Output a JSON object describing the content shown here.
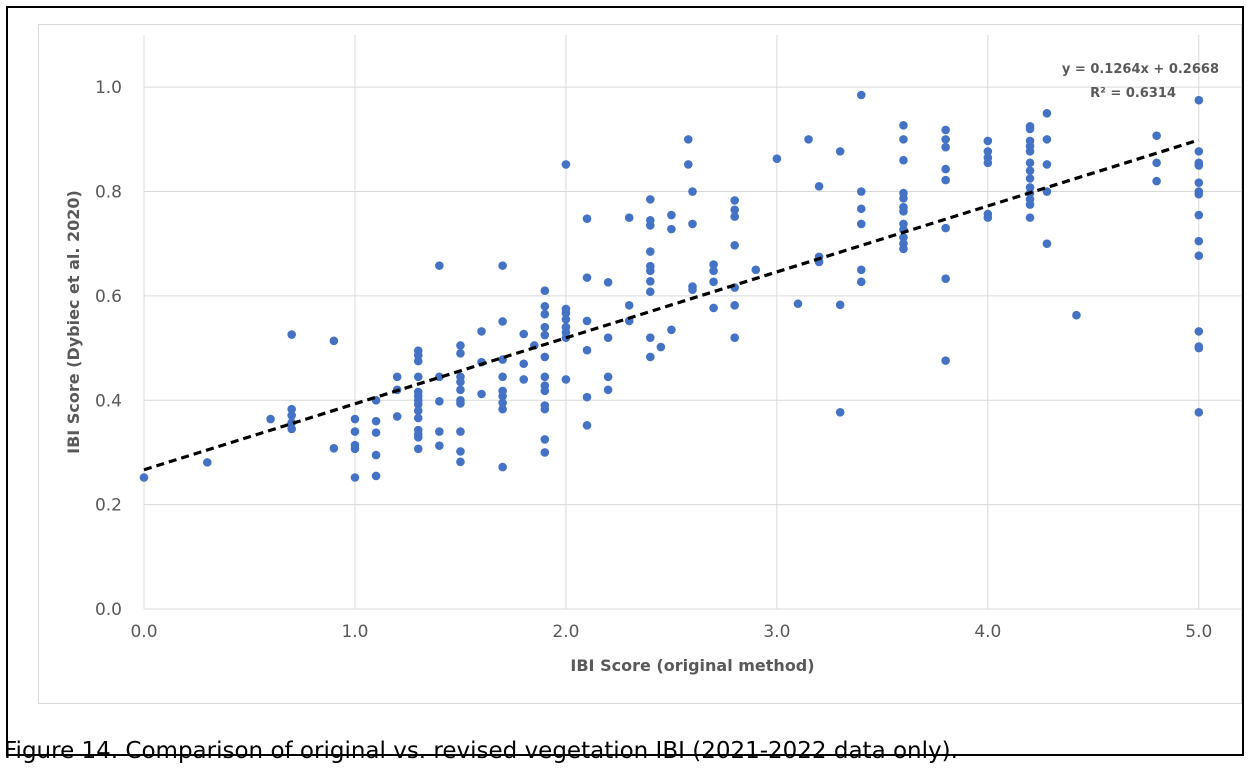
{
  "caption": "Figure 14. Comparison of original vs. revised vegetation IBI (2021-2022 data only).",
  "chart_data": {
    "type": "scatter",
    "xlabel": "IBI Score (original method)",
    "ylabel": "IBI Score (Dybiec et al. 2020)",
    "xlim": [
      0,
      5.2
    ],
    "ylim": [
      0,
      1.1
    ],
    "xticks": [
      "0.0",
      "1.0",
      "2.0",
      "3.0",
      "4.0",
      "5.0"
    ],
    "yticks": [
      "0.0",
      "0.2",
      "0.4",
      "0.6",
      "0.8",
      "1.0"
    ],
    "grid": true,
    "point_color": "#4472C4",
    "trendline": {
      "slope": 0.1264,
      "intercept": 0.2668,
      "equation": "y = 0.1264x + 0.2668",
      "r2_label": "R² = 0.6314",
      "color": "#000000"
    },
    "points": [
      [
        0.0,
        0.252
      ],
      [
        0.3,
        0.281
      ],
      [
        0.6,
        0.364
      ],
      [
        0.7,
        0.526
      ],
      [
        0.7,
        0.383
      ],
      [
        0.7,
        0.371
      ],
      [
        0.7,
        0.357
      ],
      [
        0.7,
        0.345
      ],
      [
        0.9,
        0.514
      ],
      [
        0.9,
        0.308
      ],
      [
        1.0,
        0.364
      ],
      [
        1.0,
        0.34
      ],
      [
        1.0,
        0.314
      ],
      [
        1.0,
        0.307
      ],
      [
        1.0,
        0.252
      ],
      [
        1.1,
        0.4
      ],
      [
        1.1,
        0.36
      ],
      [
        1.1,
        0.338
      ],
      [
        1.1,
        0.295
      ],
      [
        1.1,
        0.255
      ],
      [
        1.2,
        0.445
      ],
      [
        1.2,
        0.42
      ],
      [
        1.2,
        0.369
      ],
      [
        1.3,
        0.495
      ],
      [
        1.3,
        0.486
      ],
      [
        1.3,
        0.475
      ],
      [
        1.3,
        0.445
      ],
      [
        1.3,
        0.416
      ],
      [
        1.3,
        0.408
      ],
      [
        1.3,
        0.4
      ],
      [
        1.3,
        0.392
      ],
      [
        1.3,
        0.38
      ],
      [
        1.3,
        0.366
      ],
      [
        1.3,
        0.343
      ],
      [
        1.3,
        0.335
      ],
      [
        1.3,
        0.329
      ],
      [
        1.3,
        0.307
      ],
      [
        1.4,
        0.658
      ],
      [
        1.4,
        0.445
      ],
      [
        1.4,
        0.398
      ],
      [
        1.4,
        0.34
      ],
      [
        1.4,
        0.313
      ],
      [
        1.5,
        0.505
      ],
      [
        1.5,
        0.49
      ],
      [
        1.5,
        0.445
      ],
      [
        1.5,
        0.435
      ],
      [
        1.5,
        0.42
      ],
      [
        1.5,
        0.4
      ],
      [
        1.5,
        0.394
      ],
      [
        1.5,
        0.34
      ],
      [
        1.5,
        0.302
      ],
      [
        1.5,
        0.282
      ],
      [
        1.6,
        0.532
      ],
      [
        1.6,
        0.473
      ],
      [
        1.6,
        0.412
      ],
      [
        1.7,
        0.658
      ],
      [
        1.7,
        0.551
      ],
      [
        1.7,
        0.478
      ],
      [
        1.7,
        0.445
      ],
      [
        1.7,
        0.418
      ],
      [
        1.7,
        0.408
      ],
      [
        1.7,
        0.395
      ],
      [
        1.7,
        0.383
      ],
      [
        1.7,
        0.272
      ],
      [
        1.8,
        0.527
      ],
      [
        1.8,
        0.47
      ],
      [
        1.8,
        0.44
      ],
      [
        1.85,
        0.505
      ],
      [
        1.9,
        0.61
      ],
      [
        1.9,
        0.58
      ],
      [
        1.9,
        0.565
      ],
      [
        1.9,
        0.54
      ],
      [
        1.9,
        0.525
      ],
      [
        1.9,
        0.483
      ],
      [
        1.9,
        0.445
      ],
      [
        1.9,
        0.428
      ],
      [
        1.9,
        0.418
      ],
      [
        1.9,
        0.39
      ],
      [
        1.9,
        0.383
      ],
      [
        1.9,
        0.325
      ],
      [
        1.9,
        0.3
      ],
      [
        2.0,
        0.852
      ],
      [
        2.0,
        0.575
      ],
      [
        2.0,
        0.567
      ],
      [
        2.0,
        0.555
      ],
      [
        2.0,
        0.54
      ],
      [
        2.0,
        0.53
      ],
      [
        2.0,
        0.52
      ],
      [
        2.0,
        0.44
      ],
      [
        2.1,
        0.748
      ],
      [
        2.1,
        0.635
      ],
      [
        2.1,
        0.552
      ],
      [
        2.1,
        0.496
      ],
      [
        2.1,
        0.406
      ],
      [
        2.1,
        0.352
      ],
      [
        2.2,
        0.626
      ],
      [
        2.2,
        0.52
      ],
      [
        2.2,
        0.445
      ],
      [
        2.2,
        0.42
      ],
      [
        2.3,
        0.75
      ],
      [
        2.3,
        0.582
      ],
      [
        2.3,
        0.552
      ],
      [
        2.4,
        0.785
      ],
      [
        2.4,
        0.745
      ],
      [
        2.4,
        0.735
      ],
      [
        2.4,
        0.685
      ],
      [
        2.4,
        0.657
      ],
      [
        2.4,
        0.648
      ],
      [
        2.4,
        0.628
      ],
      [
        2.4,
        0.608
      ],
      [
        2.4,
        0.52
      ],
      [
        2.4,
        0.483
      ],
      [
        2.45,
        0.502
      ],
      [
        2.5,
        0.755
      ],
      [
        2.5,
        0.728
      ],
      [
        2.5,
        0.535
      ],
      [
        2.58,
        0.9
      ],
      [
        2.58,
        0.852
      ],
      [
        2.6,
        0.8
      ],
      [
        2.6,
        0.738
      ],
      [
        2.6,
        0.618
      ],
      [
        2.6,
        0.612
      ],
      [
        2.7,
        0.66
      ],
      [
        2.7,
        0.648
      ],
      [
        2.7,
        0.627
      ],
      [
        2.7,
        0.577
      ],
      [
        2.8,
        0.783
      ],
      [
        2.8,
        0.765
      ],
      [
        2.8,
        0.752
      ],
      [
        2.8,
        0.697
      ],
      [
        2.8,
        0.616
      ],
      [
        2.8,
        0.582
      ],
      [
        2.8,
        0.52
      ],
      [
        2.9,
        0.65
      ],
      [
        3.0,
        0.863
      ],
      [
        3.1,
        0.585
      ],
      [
        3.15,
        0.9
      ],
      [
        3.2,
        0.81
      ],
      [
        3.2,
        0.675
      ],
      [
        3.2,
        0.665
      ],
      [
        3.3,
        0.877
      ],
      [
        3.3,
        0.583
      ],
      [
        3.3,
        0.377
      ],
      [
        3.4,
        0.985
      ],
      [
        3.4,
        0.8
      ],
      [
        3.4,
        0.767
      ],
      [
        3.4,
        0.738
      ],
      [
        3.4,
        0.65
      ],
      [
        3.4,
        0.627
      ],
      [
        3.6,
        0.927
      ],
      [
        3.6,
        0.9
      ],
      [
        3.6,
        0.86
      ],
      [
        3.6,
        0.797
      ],
      [
        3.6,
        0.787
      ],
      [
        3.6,
        0.77
      ],
      [
        3.6,
        0.762
      ],
      [
        3.6,
        0.738
      ],
      [
        3.6,
        0.727
      ],
      [
        3.6,
        0.712
      ],
      [
        3.6,
        0.7
      ],
      [
        3.6,
        0.69
      ],
      [
        3.8,
        0.918
      ],
      [
        3.8,
        0.9
      ],
      [
        3.8,
        0.885
      ],
      [
        3.8,
        0.843
      ],
      [
        3.8,
        0.822
      ],
      [
        3.8,
        0.73
      ],
      [
        3.8,
        0.633
      ],
      [
        3.8,
        0.476
      ],
      [
        4.0,
        0.897
      ],
      [
        4.0,
        0.877
      ],
      [
        4.0,
        0.865
      ],
      [
        4.0,
        0.855
      ],
      [
        4.0,
        0.757
      ],
      [
        4.0,
        0.75
      ],
      [
        4.2,
        0.925
      ],
      [
        4.2,
        0.92
      ],
      [
        4.2,
        0.897
      ],
      [
        4.2,
        0.887
      ],
      [
        4.2,
        0.877
      ],
      [
        4.2,
        0.855
      ],
      [
        4.2,
        0.84
      ],
      [
        4.2,
        0.825
      ],
      [
        4.2,
        0.808
      ],
      [
        4.2,
        0.797
      ],
      [
        4.2,
        0.785
      ],
      [
        4.2,
        0.775
      ],
      [
        4.2,
        0.75
      ],
      [
        4.28,
        0.95
      ],
      [
        4.28,
        0.9
      ],
      [
        4.28,
        0.852
      ],
      [
        4.28,
        0.8
      ],
      [
        4.28,
        0.7
      ],
      [
        4.42,
        0.563
      ],
      [
        4.8,
        0.907
      ],
      [
        4.8,
        0.855
      ],
      [
        4.8,
        0.82
      ],
      [
        5.0,
        0.975
      ],
      [
        5.0,
        0.877
      ],
      [
        5.0,
        0.855
      ],
      [
        5.0,
        0.85
      ],
      [
        5.0,
        0.817
      ],
      [
        5.0,
        0.8
      ],
      [
        5.0,
        0.795
      ],
      [
        5.0,
        0.755
      ],
      [
        5.0,
        0.705
      ],
      [
        5.0,
        0.677
      ],
      [
        5.0,
        0.532
      ],
      [
        5.0,
        0.503
      ],
      [
        5.0,
        0.5
      ],
      [
        5.0,
        0.377
      ]
    ]
  }
}
